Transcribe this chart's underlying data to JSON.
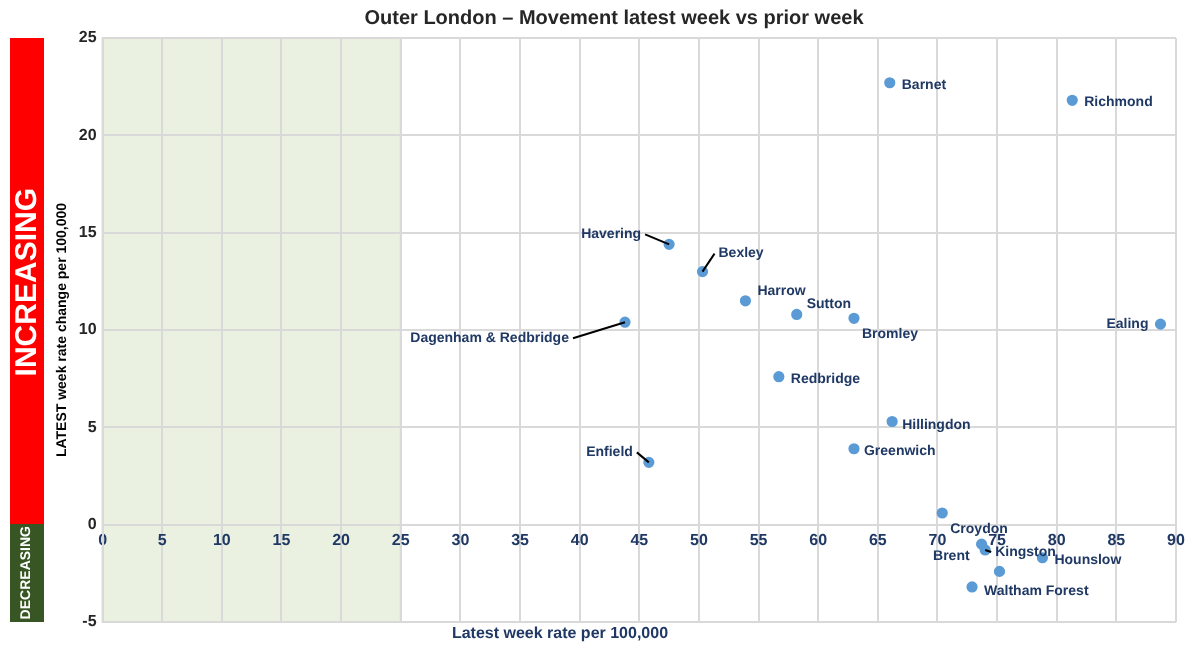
{
  "chart_data": {
    "type": "scatter",
    "title": "Outer London – Movement latest week vs prior week",
    "xlabel": "Latest week rate per 100,000",
    "ylabel": "LATEST week rate change per 100,000",
    "series": [
      {
        "color": "#5b9bd5",
        "x": [
          66.0,
          81.3,
          47.5,
          50.3,
          53.9,
          58.2,
          63.0,
          88.7,
          43.8,
          56.7,
          66.2,
          63.0,
          45.8,
          70.4,
          73.7,
          74.0,
          78.8,
          72.9,
          75.2
        ],
        "values": [
          22.7,
          21.8,
          14.4,
          13.0,
          11.5,
          10.8,
          10.6,
          10.3,
          10.4,
          7.6,
          5.3,
          3.9,
          3.2,
          0.6,
          -1.0,
          -1.3,
          -1.7,
          -3.2,
          -2.4
        ]
      }
    ],
    "annotations": [
      {
        "text": "Barnet",
        "x": 66.0,
        "y": 22.7
      },
      {
        "text": "Richmond",
        "x": 81.3,
        "y": 21.8
      },
      {
        "text": "Havering",
        "x": 47.5,
        "y": 14.4
      },
      {
        "text": "Bexley",
        "x": 50.3,
        "y": 13.0
      },
      {
        "text": "Harrow",
        "x": 53.9,
        "y": 11.5
      },
      {
        "text": "Sutton",
        "x": 58.2,
        "y": 10.8
      },
      {
        "text": "Bromley",
        "x": 63.0,
        "y": 10.6
      },
      {
        "text": "Ealing",
        "x": 88.7,
        "y": 10.3
      },
      {
        "text": "Dagenham & Redbridge",
        "x": 43.8,
        "y": 10.4
      },
      {
        "text": "Redbridge",
        "x": 56.7,
        "y": 7.6
      },
      {
        "text": "Hillingdon",
        "x": 66.2,
        "y": 5.3
      },
      {
        "text": "Greenwich",
        "x": 63.0,
        "y": 3.9
      },
      {
        "text": "Enfield",
        "x": 45.8,
        "y": 3.2
      },
      {
        "text": "Croydon",
        "x": 70.4,
        "y": 0.6
      },
      {
        "text": "Brent",
        "x": 73.7,
        "y": -1.0
      },
      {
        "text": "Kingston",
        "x": 74.0,
        "y": -1.3
      },
      {
        "text": "Hounslow",
        "x": 78.8,
        "y": -1.7
      },
      {
        "text": "Waltham Forest",
        "x": 72.9,
        "y": -3.2
      },
      "INCREASING",
      "DECREASING"
    ],
    "bands": [
      {
        "axis": "x",
        "from": 0,
        "to": 25,
        "color": "#ebf1e1"
      }
    ],
    "xlim": [
      0,
      90
    ],
    "xticks": [
      0,
      5,
      10,
      15,
      20,
      25,
      30,
      35,
      40,
      45,
      50,
      55,
      60,
      65,
      70,
      75,
      80,
      85,
      90
    ],
    "ylim": [
      -5,
      25
    ],
    "yticks": [
      -5,
      0,
      5,
      10,
      15,
      20,
      25
    ],
    "grid": true,
    "marker": "circle",
    "legend": false
  }
}
